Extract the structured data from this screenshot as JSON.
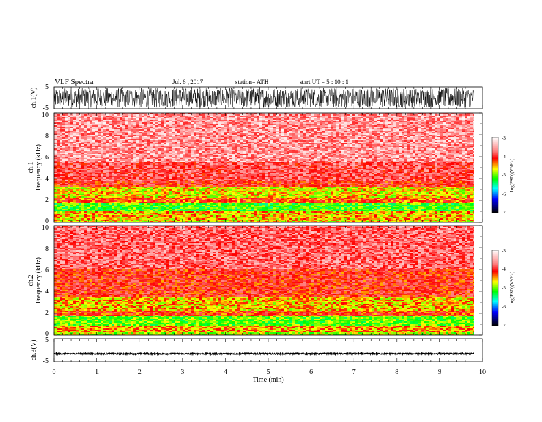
{
  "header": {
    "title": "VLF  Spectra",
    "date": "Jul.  6  , 2017",
    "station": "station= ATH",
    "start_ut": "start  UT  =    5  : 10 : 1"
  },
  "colorbar": {
    "ticks": [
      "-3",
      "-4",
      "-5",
      "-6",
      "-7"
    ],
    "label": "log(PSD)(V²/Hz)",
    "colors": [
      "#ffffff",
      "#ff8080",
      "#ff0000",
      "#ffff00",
      "#00ff00",
      "#00ffff",
      "#0000ff",
      "#000000"
    ]
  },
  "chart_data": [
    {
      "type": "line",
      "name": "ch1-waveform",
      "ylabel": "ch.1(V)",
      "yticks": [
        "5",
        "-5"
      ],
      "ylim": [
        -5,
        5
      ],
      "xlim": [
        0,
        10
      ],
      "data_end_min": 9.8,
      "amplitude_v": 4.5
    },
    {
      "type": "heatmap",
      "name": "ch1-spectrogram",
      "ylabel": "Frequency  (kHz)",
      "channel_label": "ch.1",
      "yticks": [
        "10",
        "8",
        "6",
        "4",
        "2",
        "0"
      ],
      "ylim_khz": [
        0,
        10
      ],
      "xlim_min": [
        0,
        10
      ],
      "data_end_min": 9.8,
      "bands": [
        {
          "from_khz": 0,
          "to_khz": 0.3,
          "level": -4.6
        },
        {
          "from_khz": 0.3,
          "to_khz": 1.0,
          "level": -4.5
        },
        {
          "from_khz": 1.0,
          "to_khz": 1.8,
          "level": -5.1
        },
        {
          "from_khz": 1.8,
          "to_khz": 2.2,
          "level": -4.2
        },
        {
          "from_khz": 2.2,
          "to_khz": 3.3,
          "level": -4.6
        },
        {
          "from_khz": 3.3,
          "to_khz": 3.7,
          "level": -4.0
        },
        {
          "from_khz": 3.7,
          "to_khz": 5.5,
          "level": -3.8
        },
        {
          "from_khz": 5.5,
          "to_khz": 10.0,
          "level": -3.5
        }
      ]
    },
    {
      "type": "heatmap",
      "name": "ch2-spectrogram",
      "ylabel": "Frequency  (kHz)",
      "channel_label": "ch.2",
      "yticks": [
        "10",
        "8",
        "6",
        "4",
        "2",
        "0"
      ],
      "ylim_khz": [
        0,
        10
      ],
      "xlim_min": [
        0,
        10
      ],
      "data_end_min": 9.8,
      "bands": [
        {
          "from_khz": 0,
          "to_khz": 0.3,
          "level": -4.8
        },
        {
          "from_khz": 0.3,
          "to_khz": 0.9,
          "level": -4.4
        },
        {
          "from_khz": 0.9,
          "to_khz": 1.8,
          "level": -5.0
        },
        {
          "from_khz": 1.8,
          "to_khz": 2.2,
          "level": -4.1
        },
        {
          "from_khz": 2.2,
          "to_khz": 3.5,
          "level": -4.5
        },
        {
          "from_khz": 3.5,
          "to_khz": 6.0,
          "level": -4.0
        },
        {
          "from_khz": 6.0,
          "to_khz": 10.0,
          "level": -3.7
        }
      ]
    },
    {
      "type": "line",
      "name": "ch3-waveform",
      "ylabel": "ch.3(V)",
      "yticks": [
        "5",
        "-5"
      ],
      "ylim": [
        -5,
        5
      ],
      "xlim": [
        0,
        10
      ],
      "data_end_min": 9.8,
      "offset_v": -1.5,
      "amplitude_v": 0.3
    }
  ],
  "xaxis": {
    "label": "Time  (min)",
    "ticks": [
      "0",
      "1",
      "2",
      "3",
      "4",
      "5",
      "6",
      "7",
      "8",
      "9",
      "10"
    ]
  }
}
